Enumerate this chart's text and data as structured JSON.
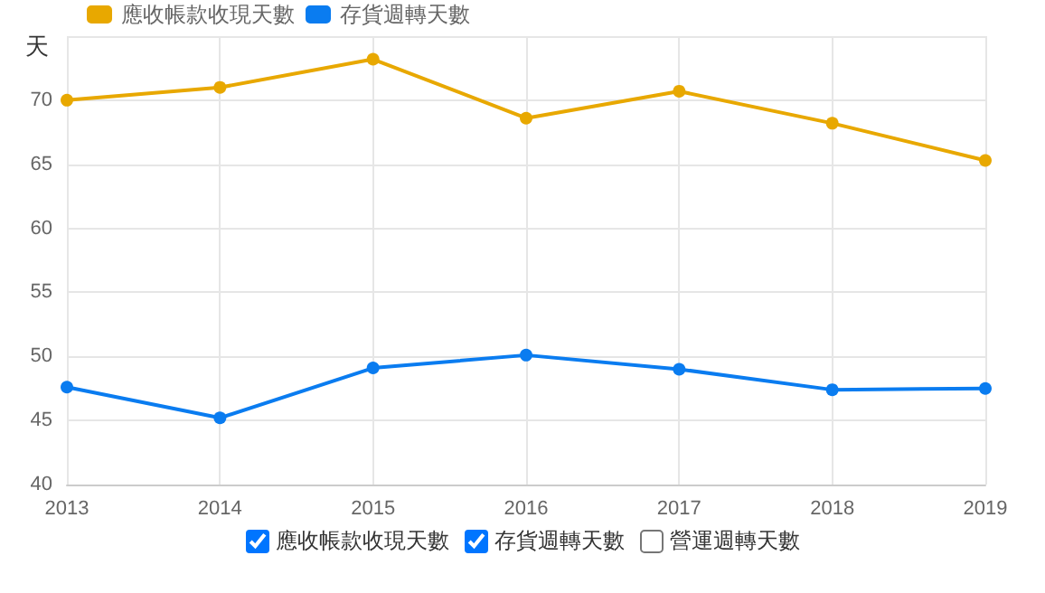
{
  "chart_data": {
    "type": "line",
    "ylabel": "天",
    "categories": [
      "2013",
      "2014",
      "2015",
      "2016",
      "2017",
      "2018",
      "2019"
    ],
    "series": [
      {
        "name": "應收帳款收現天數",
        "color": "#e8a800",
        "values": [
          70.0,
          71.0,
          73.2,
          68.6,
          70.7,
          68.2,
          65.3
        ]
      },
      {
        "name": "存貨週轉天數",
        "color": "#0a7cf0",
        "values": [
          47.6,
          45.2,
          49.1,
          50.1,
          49.0,
          47.4,
          47.5
        ]
      }
    ],
    "ylim": [
      40,
      75
    ],
    "yticks": [
      40,
      45,
      50,
      55,
      60,
      65,
      70,
      {
        "value": 75,
        "label": null
      }
    ],
    "grid": true,
    "legend": "top left",
    "marker": "circle",
    "line_style": "solid",
    "annotations": [
      "營運週轉天數"
    ]
  }
}
